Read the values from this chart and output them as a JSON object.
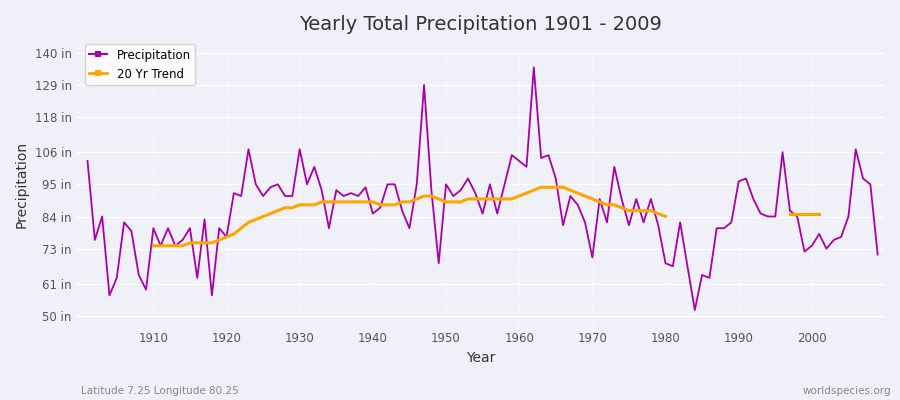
{
  "title": "Yearly Total Precipitation 1901 - 2009",
  "xlabel": "Year",
  "ylabel": "Precipitation",
  "subtitle_left": "Latitude 7.25 Longitude 80.25",
  "subtitle_right": "worldspecies.org",
  "precip_color": "#AA00AA",
  "trend_color": "#FFA500",
  "bg_color": "#F0F0F8",
  "plot_bg_color": "#F0F0F8",
  "grid_color": "#FFFFFF",
  "ytick_labels": [
    "50 in",
    "61 in",
    "73 in",
    "84 in",
    "95 in",
    "106 in",
    "118 in",
    "129 in",
    "140 in"
  ],
  "ytick_values": [
    50,
    61,
    73,
    84,
    95,
    106,
    118,
    129,
    140
  ],
  "ylim": [
    46,
    144
  ],
  "xlim": [
    1899.5,
    2010
  ],
  "years": [
    1901,
    1902,
    1903,
    1904,
    1905,
    1906,
    1907,
    1908,
    1909,
    1910,
    1911,
    1912,
    1913,
    1914,
    1915,
    1916,
    1917,
    1918,
    1919,
    1920,
    1921,
    1922,
    1923,
    1924,
    1925,
    1926,
    1927,
    1928,
    1929,
    1930,
    1931,
    1932,
    1933,
    1934,
    1935,
    1936,
    1937,
    1938,
    1939,
    1940,
    1941,
    1942,
    1943,
    1944,
    1945,
    1946,
    1947,
    1948,
    1949,
    1950,
    1951,
    1952,
    1953,
    1954,
    1955,
    1956,
    1957,
    1958,
    1959,
    1960,
    1961,
    1962,
    1963,
    1964,
    1965,
    1966,
    1967,
    1968,
    1969,
    1970,
    1971,
    1972,
    1973,
    1974,
    1975,
    1976,
    1977,
    1978,
    1979,
    1980,
    1981,
    1982,
    1983,
    1984,
    1985,
    1986,
    1987,
    1988,
    1989,
    1990,
    1991,
    1992,
    1993,
    1994,
    1995,
    1996,
    1997,
    1998,
    1999,
    2000,
    2001,
    2002,
    2003,
    2004,
    2005,
    2006,
    2007,
    2008,
    2009
  ],
  "precip": [
    103,
    76,
    84,
    57,
    63,
    82,
    79,
    64,
    59,
    80,
    74,
    80,
    74,
    76,
    80,
    63,
    83,
    57,
    80,
    77,
    92,
    91,
    107,
    95,
    91,
    94,
    95,
    91,
    91,
    107,
    95,
    101,
    93,
    80,
    93,
    91,
    92,
    91,
    94,
    85,
    87,
    95,
    95,
    86,
    80,
    95,
    129,
    93,
    68,
    95,
    91,
    93,
    97,
    92,
    85,
    95,
    85,
    95,
    105,
    103,
    101,
    135,
    104,
    105,
    97,
    81,
    91,
    88,
    82,
    70,
    90,
    82,
    101,
    90,
    81,
    90,
    82,
    90,
    81,
    68,
    67,
    82,
    67,
    52,
    64,
    63,
    80,
    80,
    82,
    96,
    97,
    90,
    85,
    84,
    84,
    106,
    86,
    84,
    72,
    74,
    78,
    73,
    76,
    77,
    84,
    107,
    97,
    95,
    71
  ],
  "trend_segments": [
    {
      "years": [
        1910,
        1911,
        1912,
        1913,
        1914,
        1915,
        1916,
        1917,
        1918,
        1919,
        1920,
        1921,
        1922,
        1923,
        1924,
        1925,
        1926,
        1927,
        1928,
        1929,
        1930,
        1931,
        1932,
        1933,
        1934,
        1935,
        1936,
        1937,
        1938,
        1939,
        1940,
        1941,
        1942,
        1943,
        1944,
        1945,
        1946,
        1947,
        1948,
        1949,
        1950,
        1951,
        1952,
        1953,
        1954,
        1955,
        1956,
        1957,
        1958,
        1959,
        1960,
        1961,
        1962,
        1963,
        1964,
        1965,
        1966,
        1967,
        1968,
        1969,
        1970,
        1971,
        1972,
        1973,
        1974,
        1975,
        1976,
        1977,
        1978,
        1979,
        1980
      ],
      "values": [
        74,
        74,
        74,
        74,
        74,
        75,
        75,
        75,
        75,
        76,
        77,
        78,
        80,
        82,
        83,
        84,
        85,
        86,
        87,
        87,
        88,
        88,
        88,
        89,
        89,
        89,
        89,
        89,
        89,
        89,
        89,
        88,
        88,
        88,
        89,
        89,
        90,
        91,
        91,
        90,
        89,
        89,
        89,
        90,
        90,
        90,
        90,
        90,
        90,
        90,
        91,
        92,
        93,
        94,
        94,
        94,
        94,
        93,
        92,
        91,
        90,
        89,
        88,
        88,
        87,
        86,
        86,
        86,
        86,
        85,
        84
      ]
    },
    {
      "years": [
        1997,
        1998,
        1999,
        2000,
        2001
      ],
      "values": [
        85,
        85,
        85,
        85,
        85
      ]
    }
  ]
}
